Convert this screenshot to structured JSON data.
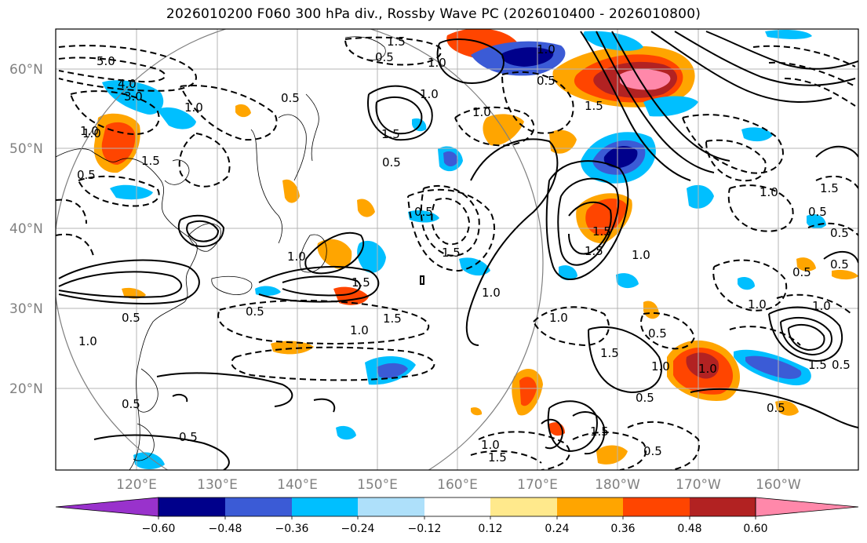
{
  "title": "2026010200 F060 300 hPa div., Rossby Wave PC (2026010400 - 2026010800)",
  "map": {
    "lon_labels": [
      "120°E",
      "130°E",
      "140°E",
      "150°E",
      "160°E",
      "170°E",
      "180°W",
      "170°W",
      "160°W"
    ],
    "lat_labels": [
      "60°N",
      "50°N",
      "40°N",
      "30°N",
      "20°N"
    ],
    "contour_labels": [
      "5.0",
      "4.0",
      "3.0",
      "1.0",
      "1.5",
      "0.5",
      "1.0",
      "0.5",
      "1.5",
      "1.0",
      "0.5",
      "0.5",
      "1.0",
      "1.5",
      "0.5",
      "1.0",
      "1.5",
      "1.0",
      "0.5",
      "1.0",
      "1.5",
      "0.5",
      "0.5",
      "1.0",
      "1.5",
      "1.0",
      "0.5",
      "1.0",
      "1.0",
      "1.5",
      "0.5",
      "1.0",
      "0.5",
      "0.5",
      "1.5",
      "1.0",
      "0.5",
      "1.5",
      "0.5",
      "1.0",
      "0.5",
      "1.0",
      "1.5",
      "1.0",
      "0.5",
      "1.0",
      "1.5",
      "0.5",
      "1.5",
      "1.0",
      "0.5",
      "1.5",
      "1.0",
      "0.5",
      "1.5"
    ]
  },
  "colorbar": {
    "tick_labels": [
      "−0.60",
      "−0.48",
      "−0.36",
      "−0.24",
      "−0.12",
      "0.12",
      "0.24",
      "0.36",
      "0.48",
      "0.60"
    ],
    "levels": [
      -0.6,
      -0.48,
      -0.36,
      -0.24,
      -0.12,
      0.12,
      0.24,
      0.36,
      0.48,
      0.6
    ],
    "colors": [
      "#9932cc",
      "#00008b",
      "#3b5bd6",
      "#00bfff",
      "#aee0fa",
      "#ffffff",
      "#ffe98c",
      "#ffa500",
      "#ff4500",
      "#b22222",
      "#ff88aa"
    ]
  },
  "shading_colors": {
    "neg_strong": "#00008b",
    "neg_mid": "#3b5bd6",
    "neg": "#00bfff",
    "neg_weak": "#aee0fa",
    "pos_weak": "#ffe98c",
    "pos": "#ffa500",
    "pos_mid": "#ff4500",
    "pos_strong": "#b22222",
    "pos_max": "#ff88aa"
  }
}
